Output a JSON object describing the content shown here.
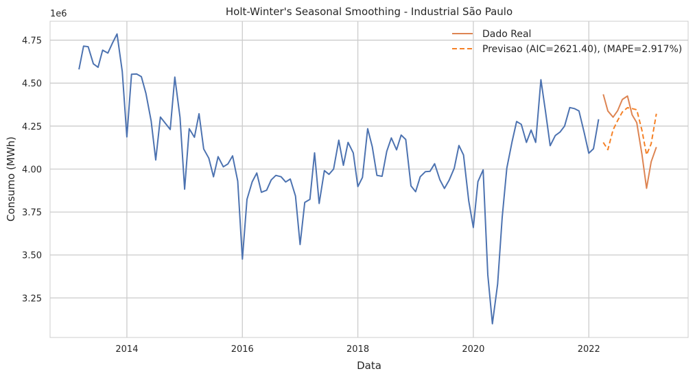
{
  "chart_data": {
    "type": "line",
    "title": "Holt-Winter's Seasonal Smoothing - Industrial São Paulo",
    "xlabel": "Data",
    "ylabel": "Consumo (MWh)",
    "y_offset_label": "1e6",
    "xlim": [
      2012.67,
      2023.72
    ],
    "ylim": [
      3.02,
      4.86
    ],
    "x_ticks": [
      2014,
      2016,
      2018,
      2020,
      2022
    ],
    "x_tick_labels": [
      "2014",
      "2016",
      "2018",
      "2020",
      "2022"
    ],
    "y_ticks": [
      3.25,
      3.5,
      3.75,
      4.0,
      4.25,
      4.5,
      4.75
    ],
    "y_tick_labels": [
      "3.25",
      "3.50",
      "3.75",
      "4.00",
      "4.25",
      "4.50",
      "4.75"
    ],
    "grid": true,
    "legend_position": "top-right",
    "colors": {
      "train": "#4c72b0",
      "real": "#dd8452",
      "forecast": "#f58025",
      "grid": "#cccccc"
    },
    "series": [
      {
        "key": "train",
        "x": [
          2013.17,
          2013.25,
          2013.33,
          2013.42,
          2013.5,
          2013.58,
          2013.67,
          2013.75,
          2013.83,
          2013.92,
          2014.0,
          2014.08,
          2014.17,
          2014.25,
          2014.33,
          2014.42,
          2014.5,
          2014.58,
          2014.67,
          2014.75,
          2014.83,
          2014.92,
          2015.0,
          2015.08,
          2015.17,
          2015.25,
          2015.33,
          2015.42,
          2015.5,
          2015.58,
          2015.67,
          2015.75,
          2015.83,
          2015.92,
          2016.0,
          2016.08,
          2016.17,
          2016.25,
          2016.33,
          2016.42,
          2016.5,
          2016.58,
          2016.67,
          2016.75,
          2016.83,
          2016.92,
          2017.0,
          2017.08,
          2017.17,
          2017.25,
          2017.33,
          2017.42,
          2017.5,
          2017.58,
          2017.67,
          2017.75,
          2017.83,
          2017.92,
          2018.0,
          2018.08,
          2018.17,
          2018.25,
          2018.33,
          2018.42,
          2018.5,
          2018.58,
          2018.67,
          2018.75,
          2018.83,
          2018.92,
          2019.0,
          2019.08,
          2019.17,
          2019.25,
          2019.33,
          2019.42,
          2019.5,
          2019.58,
          2019.67,
          2019.75,
          2019.83,
          2019.92,
          2020.0,
          2020.08,
          2020.17,
          2020.25,
          2020.33,
          2020.42,
          2020.5,
          2020.58,
          2020.67,
          2020.75,
          2020.83,
          2020.92,
          2021.0,
          2021.08,
          2021.17,
          2021.25,
          2021.33,
          2021.42,
          2021.5,
          2021.58,
          2021.67,
          2021.75,
          2021.83,
          2021.92,
          2022.0,
          2022.08,
          2022.17
        ],
        "values": [
          4.58,
          4.715,
          4.712,
          4.612,
          4.592,
          4.692,
          4.675,
          4.733,
          4.786,
          4.568,
          4.187,
          4.552,
          4.553,
          4.538,
          4.44,
          4.28,
          4.053,
          4.303,
          4.265,
          4.23,
          4.535,
          4.3,
          3.883,
          4.235,
          4.185,
          4.322,
          4.117,
          4.063,
          3.955,
          4.072,
          4.013,
          4.03,
          4.077,
          3.93,
          3.476,
          3.824,
          3.926,
          3.977,
          3.865,
          3.877,
          3.937,
          3.963,
          3.955,
          3.925,
          3.942,
          3.843,
          3.561,
          3.806,
          3.824,
          4.094,
          3.8,
          3.991,
          3.969,
          4.0,
          4.168,
          4.022,
          4.155,
          4.094,
          3.898,
          3.951,
          4.235,
          4.13,
          3.963,
          3.958,
          4.103,
          4.181,
          4.112,
          4.198,
          4.172,
          3.902,
          3.868,
          3.955,
          3.985,
          3.987,
          4.031,
          3.938,
          3.887,
          3.935,
          4.005,
          4.137,
          4.082,
          3.815,
          3.66,
          3.927,
          3.995,
          3.385,
          3.1,
          3.33,
          3.72,
          4.005,
          4.158,
          4.277,
          4.26,
          4.155,
          4.227,
          4.155,
          4.52,
          4.335,
          4.136,
          4.195,
          4.215,
          4.25,
          4.358,
          4.352,
          4.338,
          4.212,
          4.092,
          4.118,
          4.29
        ]
      },
      {
        "key": "real",
        "name": "Dado Real",
        "x": [
          2022.25,
          2022.33,
          2022.42,
          2022.5,
          2022.58,
          2022.67,
          2022.75,
          2022.83,
          2022.92,
          2023.0,
          2023.08,
          2023.17
        ],
        "values": [
          4.435,
          4.338,
          4.302,
          4.34,
          4.405,
          4.425,
          4.315,
          4.27,
          4.085,
          3.888,
          4.042,
          4.128
        ]
      },
      {
        "key": "forecast",
        "name": "Previsao (AIC=2621.40), (MAPE=2.917%)",
        "dashed": true,
        "x": [
          2022.25,
          2022.33,
          2022.42,
          2022.5,
          2022.58,
          2022.67,
          2022.75,
          2022.83,
          2022.92,
          2023.0,
          2023.08,
          2023.17
        ],
        "values": [
          4.155,
          4.113,
          4.228,
          4.283,
          4.332,
          4.357,
          4.352,
          4.345,
          4.225,
          4.083,
          4.147,
          4.322
        ]
      }
    ],
    "legend": [
      {
        "key": "real",
        "label": "Dado Real"
      },
      {
        "key": "forecast",
        "label": "Previsao (AIC=2621.40), (MAPE=2.917%)"
      }
    ]
  }
}
